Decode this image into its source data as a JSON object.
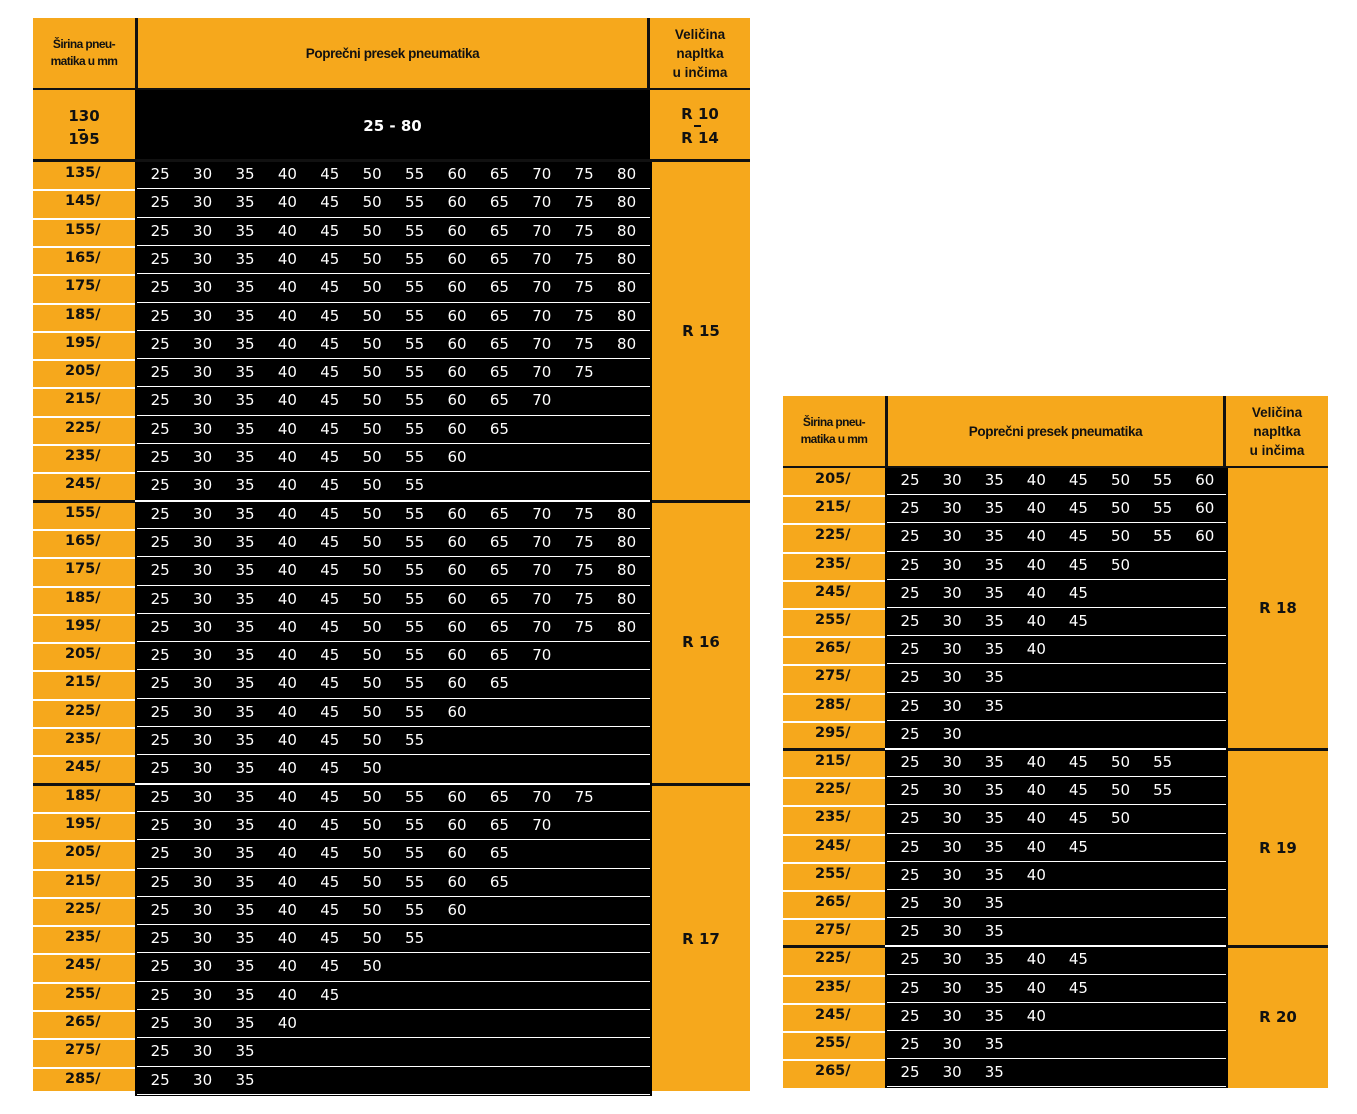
{
  "colors": {
    "accent": "#f6a81c",
    "band": "#000000",
    "text_on_band": "#ffffff"
  },
  "headers": {
    "width": [
      "Širina pneu-",
      "matika u mm"
    ],
    "section": "Poprečni presek pneumatika",
    "rim": [
      "Veličina",
      "napltka",
      "u  inčima"
    ]
  },
  "overview": {
    "width_from": "130",
    "width_to": "195",
    "range": "25 - 80",
    "rim_from": "R 10",
    "rim_to": "R 14"
  },
  "tables": [
    {
      "groups": [
        {
          "rim": "R 15",
          "rows": [
            {
              "w": "135/",
              "v": [
                "25",
                "30",
                "35",
                "40",
                "45",
                "50",
                "55",
                "60",
                "65",
                "70",
                "75",
                "80"
              ]
            },
            {
              "w": "145/",
              "v": [
                "25",
                "30",
                "35",
                "40",
                "45",
                "50",
                "55",
                "60",
                "65",
                "70",
                "75",
                "80"
              ]
            },
            {
              "w": "155/",
              "v": [
                "25",
                "30",
                "35",
                "40",
                "45",
                "50",
                "55",
                "60",
                "65",
                "70",
                "75",
                "80"
              ]
            },
            {
              "w": "165/",
              "v": [
                "25",
                "30",
                "35",
                "40",
                "45",
                "50",
                "55",
                "60",
                "65",
                "70",
                "75",
                "80"
              ]
            },
            {
              "w": "175/",
              "v": [
                "25",
                "30",
                "35",
                "40",
                "45",
                "50",
                "55",
                "60",
                "65",
                "70",
                "75",
                "80"
              ]
            },
            {
              "w": "185/",
              "v": [
                "25",
                "30",
                "35",
                "40",
                "45",
                "50",
                "55",
                "60",
                "65",
                "70",
                "75",
                "80"
              ]
            },
            {
              "w": "195/",
              "v": [
                "25",
                "30",
                "35",
                "40",
                "45",
                "50",
                "55",
                "60",
                "65",
                "70",
                "75",
                "80"
              ]
            },
            {
              "w": "205/",
              "v": [
                "25",
                "30",
                "35",
                "40",
                "45",
                "50",
                "55",
                "60",
                "65",
                "70",
                "75"
              ]
            },
            {
              "w": "215/",
              "v": [
                "25",
                "30",
                "35",
                "40",
                "45",
                "50",
                "55",
                "60",
                "65",
                "70"
              ]
            },
            {
              "w": "225/",
              "v": [
                "25",
                "30",
                "35",
                "40",
                "45",
                "50",
                "55",
                "60",
                "65"
              ]
            },
            {
              "w": "235/",
              "v": [
                "25",
                "30",
                "35",
                "40",
                "45",
                "50",
                "55",
                "60"
              ]
            },
            {
              "w": "245/",
              "v": [
                "25",
                "30",
                "35",
                "40",
                "45",
                "50",
                "55"
              ]
            }
          ]
        },
        {
          "rim": "R 16",
          "rows": [
            {
              "w": "155/",
              "v": [
                "25",
                "30",
                "35",
                "40",
                "45",
                "50",
                "55",
                "60",
                "65",
                "70",
                "75",
                "80"
              ]
            },
            {
              "w": "165/",
              "v": [
                "25",
                "30",
                "35",
                "40",
                "45",
                "50",
                "55",
                "60",
                "65",
                "70",
                "75",
                "80"
              ]
            },
            {
              "w": "175/",
              "v": [
                "25",
                "30",
                "35",
                "40",
                "45",
                "50",
                "55",
                "60",
                "65",
                "70",
                "75",
                "80"
              ]
            },
            {
              "w": "185/",
              "v": [
                "25",
                "30",
                "35",
                "40",
                "45",
                "50",
                "55",
                "60",
                "65",
                "70",
                "75",
                "80"
              ]
            },
            {
              "w": "195/",
              "v": [
                "25",
                "30",
                "35",
                "40",
                "45",
                "50",
                "55",
                "60",
                "65",
                "70",
                "75",
                "80"
              ]
            },
            {
              "w": "205/",
              "v": [
                "25",
                "30",
                "35",
                "40",
                "45",
                "50",
                "55",
                "60",
                "65",
                "70"
              ]
            },
            {
              "w": "215/",
              "v": [
                "25",
                "30",
                "35",
                "40",
                "45",
                "50",
                "55",
                "60",
                "65"
              ]
            },
            {
              "w": "225/",
              "v": [
                "25",
                "30",
                "35",
                "40",
                "45",
                "50",
                "55",
                "60"
              ]
            },
            {
              "w": "235/",
              "v": [
                "25",
                "30",
                "35",
                "40",
                "45",
                "50",
                "55"
              ]
            },
            {
              "w": "245/",
              "v": [
                "25",
                "30",
                "35",
                "40",
                "45",
                "50"
              ]
            }
          ]
        },
        {
          "rim": "R 17",
          "rows": [
            {
              "w": "185/",
              "v": [
                "25",
                "30",
                "35",
                "40",
                "45",
                "50",
                "55",
                "60",
                "65",
                "70",
                "75"
              ]
            },
            {
              "w": "195/",
              "v": [
                "25",
                "30",
                "35",
                "40",
                "45",
                "50",
                "55",
                "60",
                "65",
                "70"
              ]
            },
            {
              "w": "205/",
              "v": [
                "25",
                "30",
                "35",
                "40",
                "45",
                "50",
                "55",
                "60",
                "65"
              ]
            },
            {
              "w": "215/",
              "v": [
                "25",
                "30",
                "35",
                "40",
                "45",
                "50",
                "55",
                "60",
                "65"
              ]
            },
            {
              "w": "225/",
              "v": [
                "25",
                "30",
                "35",
                "40",
                "45",
                "50",
                "55",
                "60"
              ]
            },
            {
              "w": "235/",
              "v": [
                "25",
                "30",
                "35",
                "40",
                "45",
                "50",
                "55"
              ]
            },
            {
              "w": "245/",
              "v": [
                "25",
                "30",
                "35",
                "40",
                "45",
                "50"
              ]
            },
            {
              "w": "255/",
              "v": [
                "25",
                "30",
                "35",
                "40",
                "45"
              ]
            },
            {
              "w": "265/",
              "v": [
                "25",
                "30",
                "35",
                "40"
              ]
            },
            {
              "w": "275/",
              "v": [
                "25",
                "30",
                "35"
              ]
            },
            {
              "w": "285/",
              "v": [
                "25",
                "30",
                "35"
              ]
            }
          ]
        }
      ]
    },
    {
      "groups": [
        {
          "rim": "R 18",
          "rows": [
            {
              "w": "205/",
              "v": [
                "25",
                "30",
                "35",
                "40",
                "45",
                "50",
                "55",
                "60"
              ]
            },
            {
              "w": "215/",
              "v": [
                "25",
                "30",
                "35",
                "40",
                "45",
                "50",
                "55",
                "60"
              ]
            },
            {
              "w": "225/",
              "v": [
                "25",
                "30",
                "35",
                "40",
                "45",
                "50",
                "55",
                "60"
              ]
            },
            {
              "w": "235/",
              "v": [
                "25",
                "30",
                "35",
                "40",
                "45",
                "50"
              ]
            },
            {
              "w": "245/",
              "v": [
                "25",
                "30",
                "35",
                "40",
                "45"
              ]
            },
            {
              "w": "255/",
              "v": [
                "25",
                "30",
                "35",
                "40",
                "45"
              ]
            },
            {
              "w": "265/",
              "v": [
                "25",
                "30",
                "35",
                "40"
              ]
            },
            {
              "w": "275/",
              "v": [
                "25",
                "30",
                "35"
              ]
            },
            {
              "w": "285/",
              "v": [
                "25",
                "30",
                "35"
              ]
            },
            {
              "w": "295/",
              "v": [
                "25",
                "30"
              ]
            }
          ]
        },
        {
          "rim": "R 19",
          "rows": [
            {
              "w": "215/",
              "v": [
                "25",
                "30",
                "35",
                "40",
                "45",
                "50",
                "55"
              ]
            },
            {
              "w": "225/",
              "v": [
                "25",
                "30",
                "35",
                "40",
                "45",
                "50",
                "55"
              ]
            },
            {
              "w": "235/",
              "v": [
                "25",
                "30",
                "35",
                "40",
                "45",
                "50"
              ]
            },
            {
              "w": "245/",
              "v": [
                "25",
                "30",
                "35",
                "40",
                "45"
              ]
            },
            {
              "w": "255/",
              "v": [
                "25",
                "30",
                "35",
                "40"
              ]
            },
            {
              "w": "265/",
              "v": [
                "25",
                "30",
                "35"
              ]
            },
            {
              "w": "275/",
              "v": [
                "25",
                "30",
                "35"
              ]
            }
          ]
        },
        {
          "rim": "R 20",
          "rows": [
            {
              "w": "225/",
              "v": [
                "25",
                "30",
                "35",
                "40",
                "45"
              ]
            },
            {
              "w": "235/",
              "v": [
                "25",
                "30",
                "35",
                "40",
                "45"
              ]
            },
            {
              "w": "245/",
              "v": [
                "25",
                "30",
                "35",
                "40"
              ]
            },
            {
              "w": "255/",
              "v": [
                "25",
                "30",
                "35"
              ]
            },
            {
              "w": "265/",
              "v": [
                "25",
                "30",
                "35"
              ]
            }
          ]
        }
      ]
    }
  ]
}
